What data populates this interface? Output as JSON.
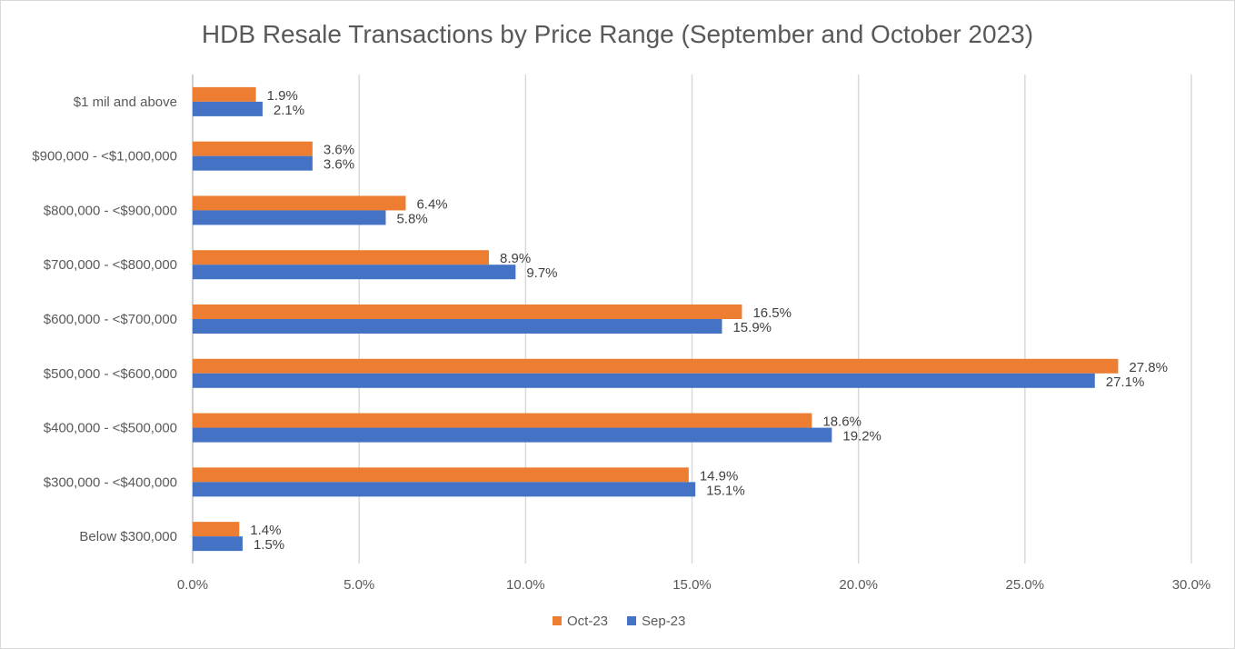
{
  "chart_data": {
    "type": "bar",
    "orientation": "horizontal",
    "title": "HDB Resale Transactions by Price Range (September and October 2023)",
    "categories": [
      "$1 mil and above",
      "$900,000 - <$1,000,000",
      "$800,000 - <$900,000",
      "$700,000 - <$800,000",
      "$600,000 - <$700,000",
      "$500,000 - <$600,000",
      "$400,000 - <$500,000",
      "$300,000 - <$400,000",
      "Below $300,000"
    ],
    "series": [
      {
        "name": "Oct-23",
        "color": "#ed7d31",
        "values": [
          1.9,
          3.6,
          6.4,
          8.9,
          16.5,
          27.8,
          18.6,
          14.9,
          1.4
        ]
      },
      {
        "name": "Sep-23",
        "color": "#4472c4",
        "values": [
          2.1,
          3.6,
          5.8,
          9.7,
          15.9,
          27.1,
          19.2,
          15.1,
          1.5
        ]
      }
    ],
    "xlim": [
      0,
      30
    ],
    "x_ticks": [
      "0.0%",
      "5.0%",
      "10.0%",
      "15.0%",
      "20.0%",
      "25.0%",
      "30.0%"
    ],
    "value_suffix": "%",
    "grid": true,
    "legend_position": "bottom"
  }
}
